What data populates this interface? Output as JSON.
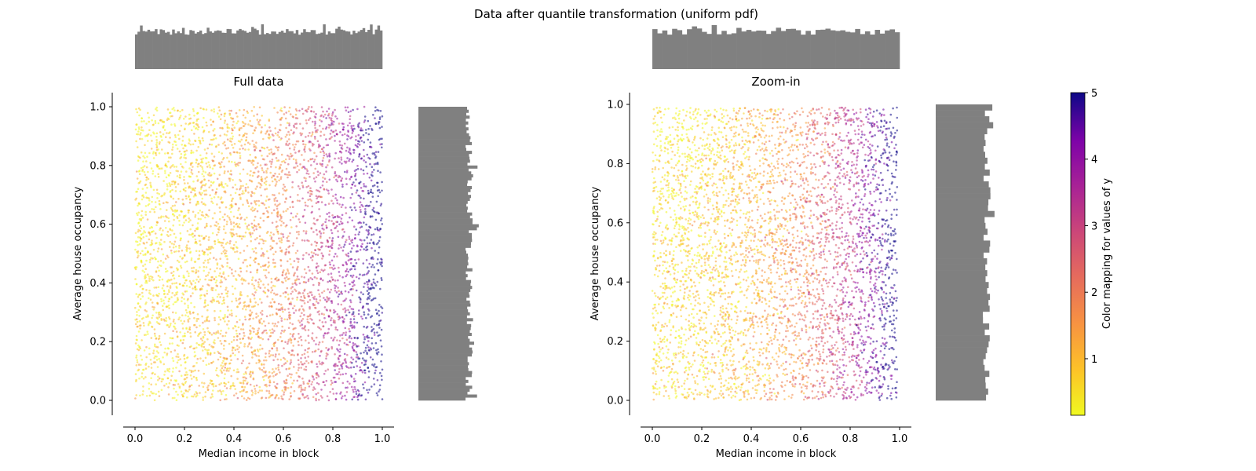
{
  "chart_data": {
    "suptitle": "Data after quantile transformation (uniform pdf)",
    "type": "scatter",
    "panels": [
      {
        "title": "Full data",
        "xlabel": "Median income in block",
        "ylabel": "Average house occupancy",
        "xlim": [
          -0.05,
          1.05
        ],
        "ylim": [
          -0.05,
          1.05
        ],
        "data_range": [
          0,
          1
        ],
        "xticks": [
          "0.0",
          "0.2",
          "0.4",
          "0.6",
          "0.8",
          "1.0"
        ],
        "yticks": [
          "0.0",
          "0.2",
          "0.4",
          "0.6",
          "0.8",
          "1.0"
        ],
        "marginal_histograms": {
          "top": "x distribution, roughly uniform",
          "right": "y distribution, roughly uniform"
        }
      },
      {
        "title": "Zoom-in",
        "xlabel": "Median income in block",
        "ylabel": "Average house occupancy",
        "xlim": [
          -0.05,
          1.05
        ],
        "ylim": [
          -0.05,
          1.05
        ],
        "data_range": [
          0,
          0.99
        ],
        "xticks": [
          "0.0",
          "0.2",
          "0.4",
          "0.6",
          "0.8",
          "1.0"
        ],
        "yticks": [
          "0.0",
          "0.2",
          "0.4",
          "0.6",
          "0.8",
          "1.0"
        ],
        "marginal_histograms": {
          "top": "x distribution, roughly uniform",
          "right": "y distribution, roughly uniform"
        }
      }
    ],
    "colorbar": {
      "label": "Color mapping for values of y",
      "colormap": "plasma_r",
      "range": [
        0.15,
        5
      ],
      "ticks": [
        "1",
        "2",
        "3",
        "4",
        "5"
      ]
    },
    "trend": "color value of y increases with median income (yellow at left, dark purple at right)",
    "histogram_color": "#808080",
    "grid": false
  }
}
